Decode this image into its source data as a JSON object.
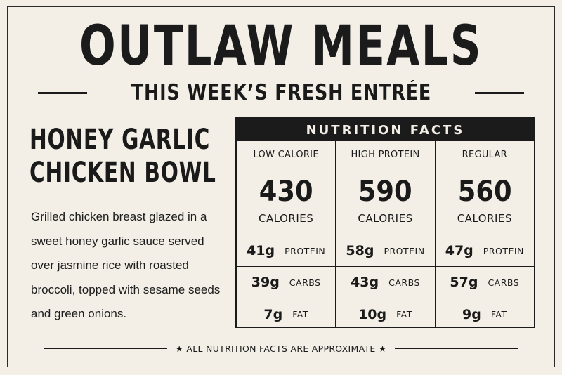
{
  "brand": "OUTLAW MEALS",
  "subtitle": "THIS WEEK’S FRESH ENTRÉE",
  "dish": {
    "title_line1": "HONEY GARLIC",
    "title_line2": "CHICKEN BOWL",
    "description": "Grilled chicken breast glazed in a sweet honey garlic sauce served over jasmine rice with roasted broccoli, topped with sesame seeds and green onions."
  },
  "nutrition": {
    "heading": "NUTRITION FACTS",
    "calories_label": "CALORIES",
    "protein_label": "PROTEIN",
    "carbs_label": "CARBS",
    "fat_label": "FAT",
    "options": [
      {
        "label": "LOW CALORIE",
        "calories": "430",
        "protein": "41g",
        "carbs": "39g",
        "fat": "7g"
      },
      {
        "label": "HIGH PROTEIN",
        "calories": "590",
        "protein": "58g",
        "carbs": "43g",
        "fat": "10g"
      },
      {
        "label": "REGULAR",
        "calories": "560",
        "protein": "47g",
        "carbs": "57g",
        "fat": "9g"
      }
    ]
  },
  "footer": "★ ALL NUTRITION FACTS ARE APPROXIMATE ★"
}
